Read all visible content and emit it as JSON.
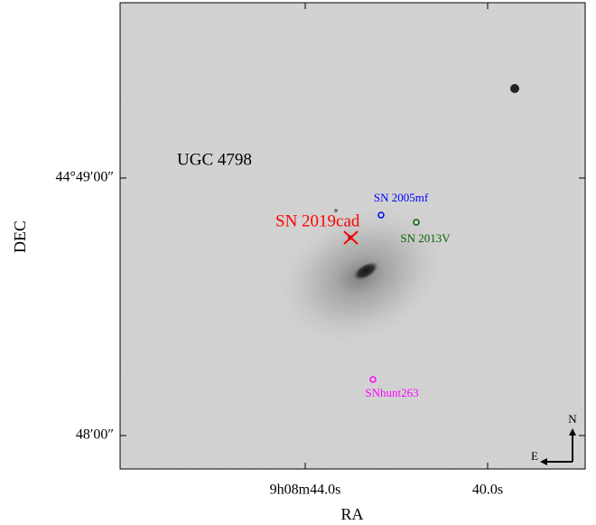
{
  "axes": {
    "x_label": "RA",
    "y_label": "DEC",
    "x_tick_labels": [
      "9h08m44.0s",
      "40.0s"
    ],
    "y_tick_labels": [
      "44°49′00″",
      "48′00″"
    ]
  },
  "annotations": {
    "galaxy": "UGC 4798",
    "target": "SN 2019cad",
    "others": [
      "SN 2005mf",
      "SN 2013V",
      "SNhunt263"
    ]
  },
  "compass": {
    "north": "N",
    "east": "E"
  }
}
